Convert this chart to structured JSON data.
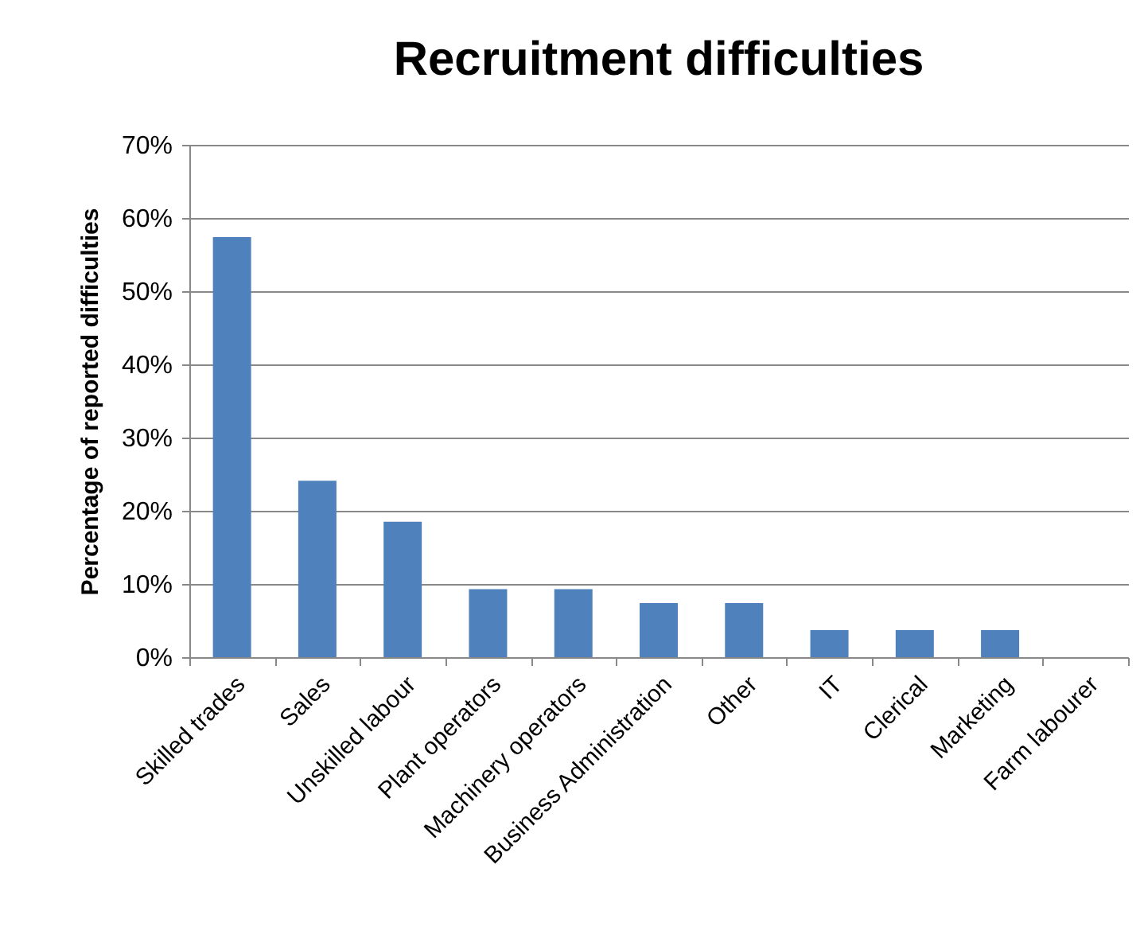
{
  "chart_data": {
    "type": "bar",
    "title": "Recruitment difficulties",
    "ylabel": "Percentage of reported difficulties",
    "categories": [
      "Skilled trades",
      "Sales",
      "Unskilled labour",
      "Plant operators",
      "Machinery operators",
      "Business Administration",
      "Other",
      "IT",
      "Clerical",
      "Marketing",
      "Farm labourer"
    ],
    "values": [
      57.4,
      24.1,
      18.5,
      9.3,
      9.3,
      7.4,
      7.4,
      3.7,
      3.7,
      3.7,
      0
    ],
    "color": "#4f81bd",
    "ylim": [
      0,
      70
    ],
    "yticks": [
      {
        "value": 0,
        "label": "0%"
      },
      {
        "value": 10,
        "label": "10%"
      },
      {
        "value": 20,
        "label": "20%"
      },
      {
        "value": 30,
        "label": "30%"
      },
      {
        "value": 40,
        "label": "40%"
      },
      {
        "value": 50,
        "label": "50%"
      },
      {
        "value": 60,
        "label": "60%"
      },
      {
        "value": 70,
        "label": "70%"
      }
    ],
    "grid": "y"
  }
}
